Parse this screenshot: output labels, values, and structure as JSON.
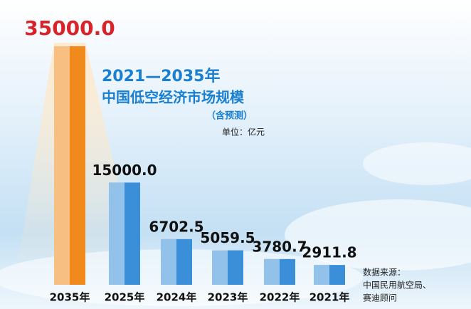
{
  "chart_data": {
    "type": "bar",
    "title": "2021—2035年",
    "subtitle": "中国低空经济市场规模",
    "note": "（含预测）",
    "unit": "单位：亿元",
    "source": [
      "数据来源：",
      "中国民用航空局、",
      "赛迪顾问"
    ],
    "categories": [
      "2035年",
      "2025年",
      "2024年",
      "2023年",
      "2022年",
      "2021年"
    ],
    "values": [
      35000,
      15000,
      6702.5,
      5059.5,
      3780.7,
      2911.8
    ],
    "value_labels": [
      "35000.0",
      "15000.0",
      "6702.5",
      "5059.5",
      "3780.7",
      "2911.8"
    ],
    "colors": [
      "#f08a1c",
      "#3a8fd8",
      "#3a8fd8",
      "#3a8fd8",
      "#3a8fd8",
      "#3a8fd8"
    ],
    "label_colors": [
      "#d9232a",
      "#111111",
      "#111111",
      "#111111",
      "#111111",
      "#111111"
    ]
  }
}
